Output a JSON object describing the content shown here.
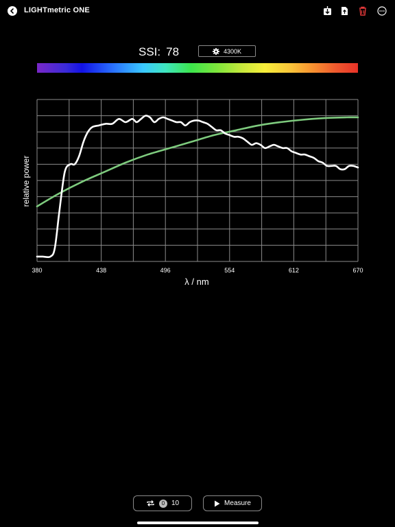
{
  "header": {
    "title": "LIGHTmetric ONE",
    "back_icon": "chevron-left-icon",
    "actions": [
      {
        "name": "save-icon",
        "color": "#ffffff"
      },
      {
        "name": "export-document-icon",
        "color": "#ffffff"
      },
      {
        "name": "trash-icon",
        "color": "#e5393a"
      },
      {
        "name": "more-icon",
        "color": "#ffffff"
      }
    ]
  },
  "ssi": {
    "label": "SSI:",
    "value": "78"
  },
  "cct_button": {
    "label": "4300K",
    "icon": "gear-icon"
  },
  "chart_data": {
    "type": "line",
    "xlabel": "λ / nm",
    "ylabel": "relative power",
    "xlim": [
      380,
      670
    ],
    "ylim": [
      0,
      1
    ],
    "x_ticks": [
      "380",
      "438",
      "496",
      "554",
      "612",
      "670"
    ],
    "grid": true,
    "series": [
      {
        "color": "#ffffff",
        "x": [
          380,
          385,
          392,
          396,
          400,
          405,
          410,
          414,
          418,
          422,
          426,
          430,
          436,
          442,
          448,
          454,
          460,
          466,
          470,
          474,
          478,
          482,
          486,
          490,
          494,
          498,
          502,
          506,
          510,
          514,
          518,
          522,
          526,
          530,
          534,
          538,
          542,
          546,
          550,
          554,
          558,
          562,
          566,
          570,
          574,
          578,
          582,
          586,
          590,
          594,
          598,
          602,
          606,
          610,
          614,
          618,
          622,
          626,
          630,
          634,
          638,
          642,
          646,
          650,
          654,
          658,
          662,
          666,
          670
        ],
        "y": [
          0.03,
          0.03,
          0.03,
          0.08,
          0.3,
          0.55,
          0.6,
          0.6,
          0.65,
          0.74,
          0.8,
          0.83,
          0.84,
          0.85,
          0.85,
          0.88,
          0.86,
          0.88,
          0.86,
          0.88,
          0.9,
          0.89,
          0.86,
          0.88,
          0.89,
          0.88,
          0.87,
          0.86,
          0.86,
          0.84,
          0.86,
          0.87,
          0.87,
          0.86,
          0.85,
          0.83,
          0.81,
          0.81,
          0.79,
          0.78,
          0.77,
          0.77,
          0.76,
          0.74,
          0.72,
          0.73,
          0.72,
          0.7,
          0.71,
          0.72,
          0.71,
          0.7,
          0.7,
          0.68,
          0.67,
          0.66,
          0.66,
          0.65,
          0.64,
          0.62,
          0.61,
          0.59,
          0.59,
          0.59,
          0.57,
          0.57,
          0.59,
          0.59,
          0.58
        ]
      },
      {
        "color": "#7ecb7e",
        "x": [
          380,
          400,
          420,
          440,
          460,
          480,
          500,
          520,
          540,
          560,
          580,
          600,
          620,
          640,
          660,
          670
        ],
        "y": [
          0.34,
          0.42,
          0.49,
          0.55,
          0.61,
          0.66,
          0.7,
          0.74,
          0.78,
          0.81,
          0.84,
          0.86,
          0.875,
          0.885,
          0.89,
          0.89
        ]
      }
    ]
  },
  "footer": {
    "repeat": {
      "icon": "repeat-icon",
      "count": "0",
      "total": "10"
    },
    "measure": {
      "icon": "play-icon",
      "label": "Measure"
    }
  }
}
